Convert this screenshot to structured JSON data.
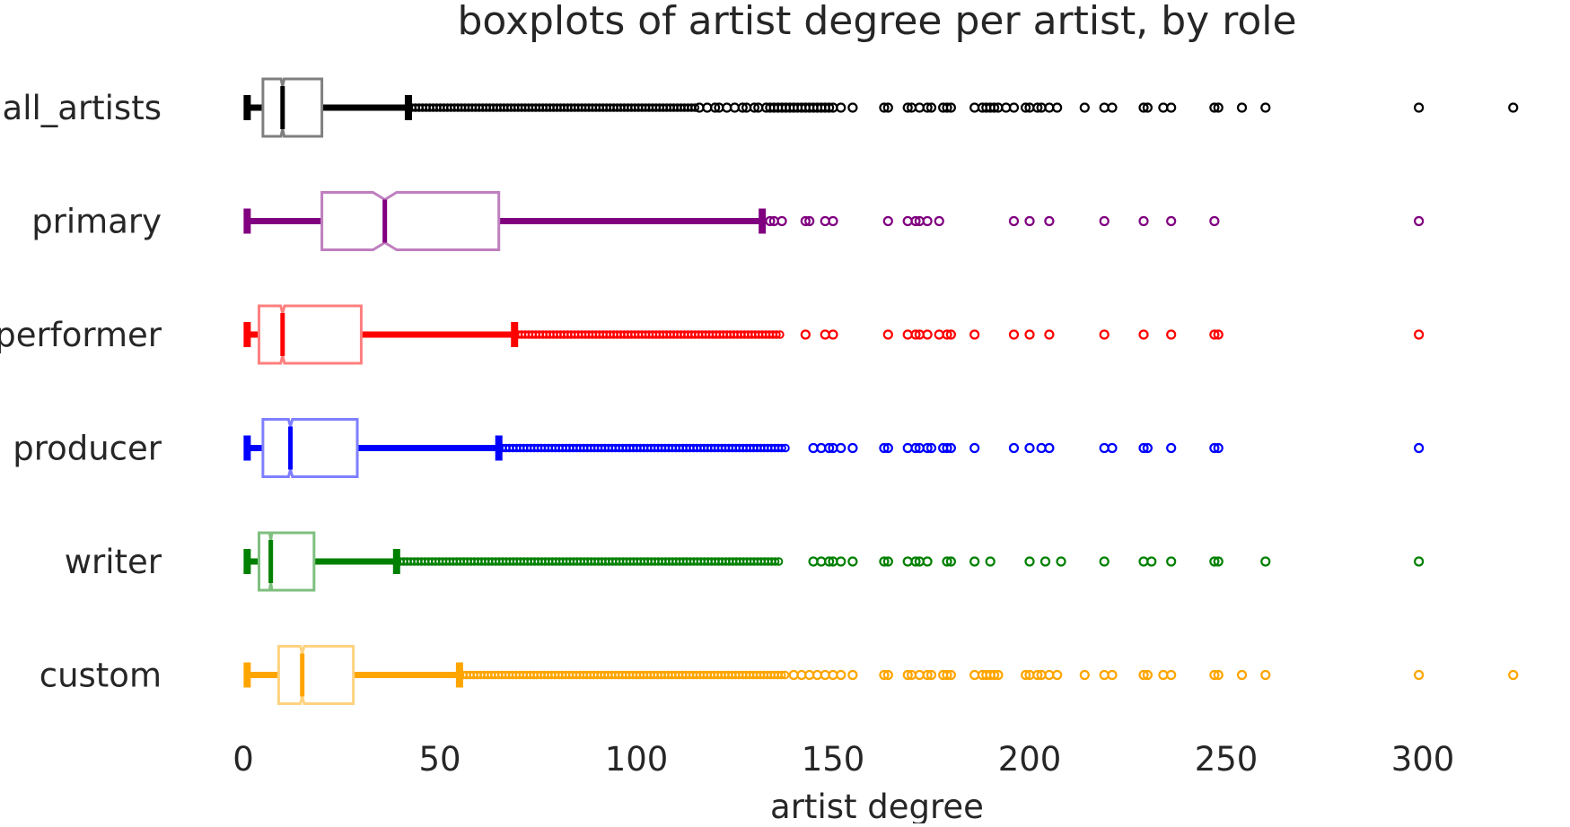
{
  "chart_data": {
    "type": "boxplot",
    "orientation": "horizontal",
    "notched": true,
    "title": "boxplots of artist degree per artist, by role",
    "xlabel": "artist degree",
    "ylabel": "",
    "xlim": [
      -1,
      325
    ],
    "xticks": [
      0,
      50,
      100,
      150,
      200,
      250,
      300
    ],
    "xtick_labels": [
      "0",
      "50",
      "100",
      "150",
      "200",
      "250",
      "300"
    ],
    "grid": false,
    "categories": [
      "all_artists",
      "primary",
      "performer",
      "producer",
      "writer",
      "custom"
    ],
    "series": [
      {
        "category": "all_artists",
        "color": "#000000",
        "box_color": "#7f7f7f",
        "whislo": 1,
        "q1": 5,
        "med": 10,
        "q3": 20,
        "whishi": 42,
        "notch_lo": 9.6,
        "notch_hi": 10.4,
        "outlier_dense_range": [
          42,
          115
        ],
        "outliers": [
          116,
          118,
          120,
          121,
          123,
          125,
          127,
          128,
          130,
          131,
          133,
          134,
          135,
          136,
          137,
          138,
          139,
          140,
          141,
          142,
          143,
          144,
          145,
          146,
          147,
          148,
          149,
          150,
          152,
          155,
          163,
          164,
          169,
          170,
          172,
          174,
          175,
          178,
          179,
          180,
          186,
          188,
          189,
          190,
          191,
          192,
          194,
          196,
          199,
          200,
          202,
          203,
          205,
          207,
          214,
          219,
          221,
          229,
          230,
          234,
          236,
          247,
          248,
          254,
          260,
          299,
          323
        ]
      },
      {
        "category": "primary",
        "color": "#800080",
        "box_color": "#bf7fbf",
        "whislo": 1,
        "q1": 20,
        "med": 36,
        "q3": 65,
        "whishi": 132,
        "notch_lo": 33,
        "notch_hi": 39,
        "outlier_dense_range": null,
        "outliers": [
          134,
          135,
          137,
          143,
          144,
          148,
          150,
          164,
          169,
          171,
          172,
          174,
          177,
          196,
          200,
          205,
          219,
          229,
          236,
          247,
          299
        ]
      },
      {
        "category": "performer",
        "color": "#ff0000",
        "box_color": "#ff7f7f",
        "whislo": 1,
        "q1": 4,
        "med": 10,
        "q3": 30,
        "whishi": 69,
        "notch_lo": 9.5,
        "notch_hi": 10.5,
        "outlier_dense_range": [
          69,
          137
        ],
        "outliers": [
          143,
          148,
          150,
          164,
          169,
          171,
          172,
          174,
          177,
          179,
          180,
          186,
          196,
          200,
          205,
          219,
          229,
          236,
          247,
          248,
          299
        ]
      },
      {
        "category": "producer",
        "color": "#0000ff",
        "box_color": "#7f7fff",
        "whislo": 1,
        "q1": 5,
        "med": 12,
        "q3": 29,
        "whishi": 65,
        "notch_lo": 11.5,
        "notch_hi": 12.5,
        "outlier_dense_range": [
          65,
          138
        ],
        "outliers": [
          145,
          147,
          149,
          150,
          152,
          155,
          163,
          164,
          169,
          171,
          172,
          174,
          175,
          178,
          179,
          180,
          186,
          196,
          200,
          203,
          205,
          219,
          221,
          229,
          230,
          236,
          247,
          248,
          299
        ]
      },
      {
        "category": "writer",
        "color": "#008000",
        "box_color": "#7fbf7f",
        "whislo": 1,
        "q1": 4,
        "med": 7,
        "q3": 18,
        "whishi": 39,
        "notch_lo": 6.7,
        "notch_hi": 7.3,
        "outlier_dense_range": [
          39,
          137
        ],
        "outliers": [
          145,
          147,
          149,
          150,
          152,
          155,
          163,
          164,
          169,
          171,
          172,
          174,
          179,
          180,
          186,
          190,
          200,
          204,
          208,
          219,
          229,
          231,
          236,
          247,
          248,
          260,
          299
        ]
      },
      {
        "category": "custom",
        "color": "#ffa500",
        "box_color": "#ffd27f",
        "whislo": 1,
        "q1": 9,
        "med": 15,
        "q3": 28,
        "whishi": 55,
        "notch_lo": 14.5,
        "notch_hi": 15.5,
        "outlier_dense_range": [
          55,
          138
        ],
        "outliers": [
          140,
          142,
          144,
          146,
          148,
          150,
          152,
          155,
          163,
          164,
          169,
          170,
          172,
          174,
          175,
          178,
          179,
          180,
          186,
          188,
          189,
          190,
          191,
          192,
          199,
          200,
          202,
          203,
          205,
          207,
          214,
          219,
          221,
          229,
          230,
          234,
          236,
          247,
          248,
          254,
          260,
          299,
          323
        ]
      }
    ]
  }
}
